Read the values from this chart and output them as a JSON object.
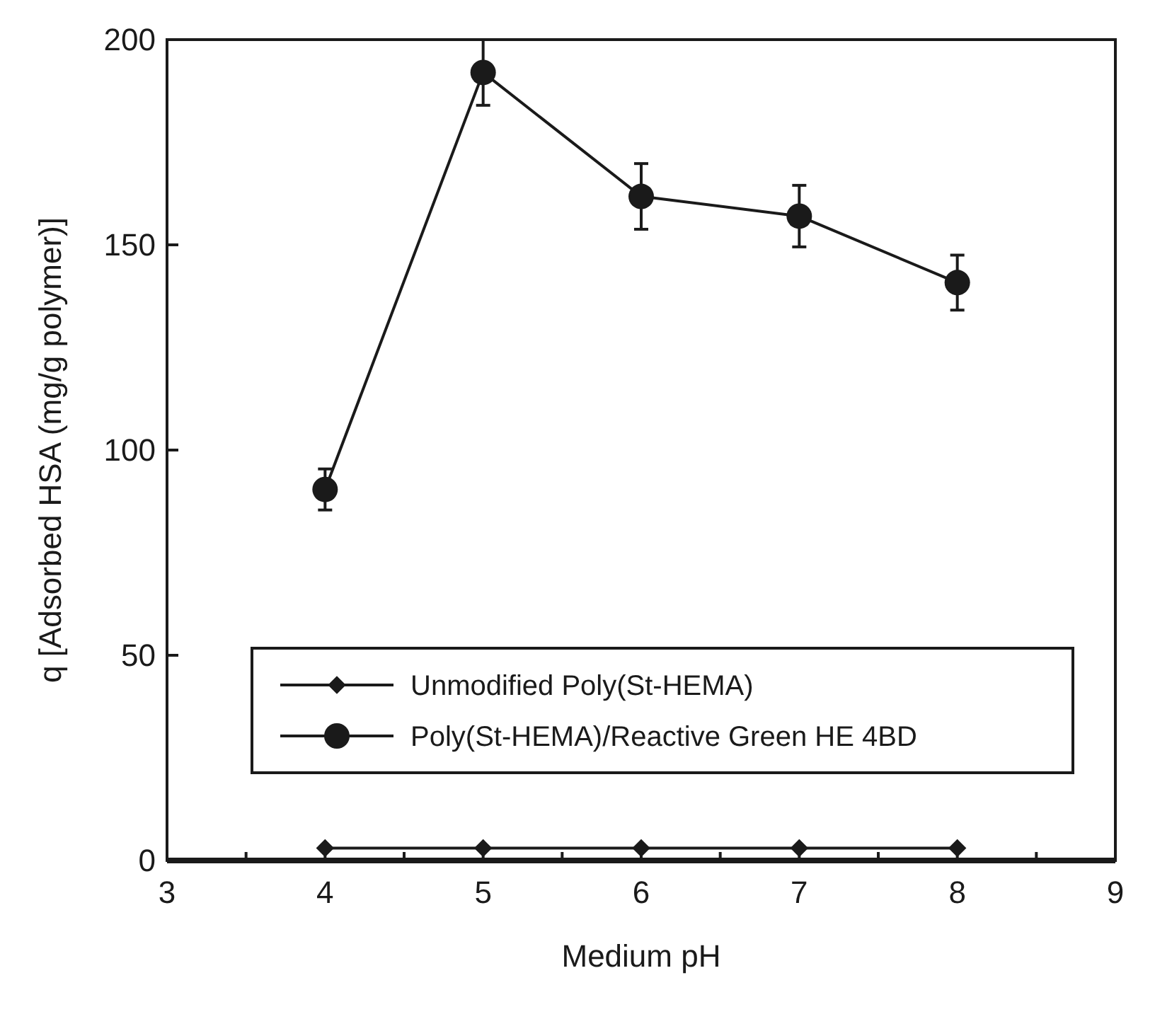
{
  "chart_data": {
    "type": "line",
    "xlabel": "Medium pH",
    "ylabel": "q [Adsorbed HSA (mg/g polymer)]",
    "x": [
      4,
      5,
      6,
      7,
      8
    ],
    "series": [
      {
        "name": "Unmodified Poly(St-HEMA)",
        "color": "#1a1a1a",
        "marker": "diamond",
        "values": [
          3,
          3,
          3,
          3,
          3
        ]
      },
      {
        "name": "Poly(St-HEMA)/Reactive Green HE 4BD",
        "color": "#1a1a1a",
        "marker": "circle",
        "values": [
          90.4,
          192,
          161.8,
          157,
          140.8
        ],
        "errors": [
          5,
          8,
          8,
          7.5,
          6.7
        ]
      }
    ],
    "xlim": [
      3,
      9
    ],
    "xticks": [
      3,
      {
        "value": 3.5,
        "label": null
      },
      4,
      {
        "value": 4.5,
        "label": null
      },
      5,
      {
        "value": 5.5,
        "label": null
      },
      6,
      {
        "value": 6.5,
        "label": null
      },
      7,
      {
        "value": 7.5,
        "label": null
      },
      8,
      {
        "value": 8.5,
        "label": null
      },
      9
    ],
    "ylim": [
      0,
      200
    ],
    "yticks": [
      0,
      50,
      100,
      150,
      200
    ],
    "grid": false,
    "legend": "bottom",
    "line_style": "solid"
  }
}
